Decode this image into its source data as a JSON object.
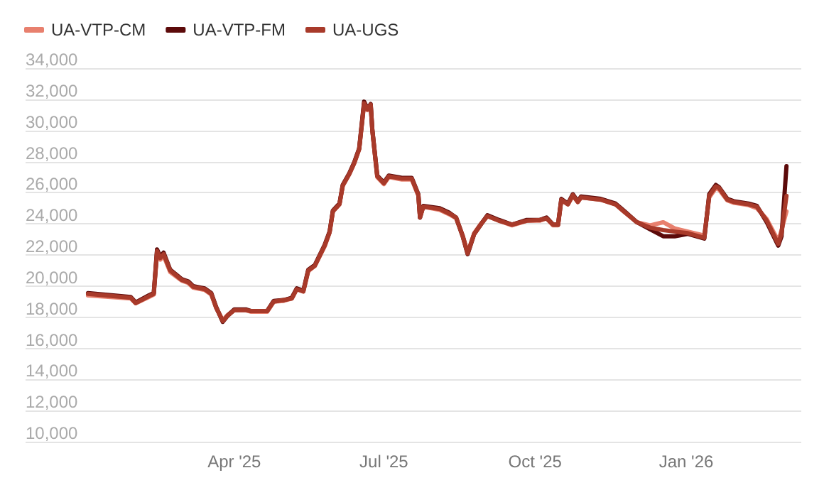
{
  "chart_data": {
    "type": "line",
    "x": [
      "2025-01-02",
      "2025-01-28",
      "2025-01-31",
      "2025-02-08",
      "2025-02-11",
      "2025-02-13",
      "2025-02-15",
      "2025-02-17",
      "2025-02-21",
      "2025-02-28",
      "2025-03-04",
      "2025-03-07",
      "2025-03-14",
      "2025-03-18",
      "2025-03-21",
      "2025-03-25",
      "2025-03-28",
      "2025-04-01",
      "2025-04-08",
      "2025-04-11",
      "2025-04-21",
      "2025-04-25",
      "2025-05-01",
      "2025-05-06",
      "2025-05-09",
      "2025-05-13",
      "2025-05-16",
      "2025-05-20",
      "2025-05-26",
      "2025-05-29",
      "2025-05-31",
      "2025-06-04",
      "2025-06-06",
      "2025-06-10",
      "2025-06-13",
      "2025-06-16",
      "2025-06-19",
      "2025-06-21",
      "2025-06-23",
      "2025-06-24",
      "2025-06-27",
      "2025-07-01",
      "2025-07-04",
      "2025-07-12",
      "2025-07-18",
      "2025-07-22",
      "2025-07-23",
      "2025-07-25",
      "2025-08-04",
      "2025-08-10",
      "2025-08-14",
      "2025-08-18",
      "2025-08-21",
      "2025-08-25",
      "2025-08-29",
      "2025-09-02",
      "2025-09-09",
      "2025-09-17",
      "2025-09-26",
      "2025-10-04",
      "2025-10-08",
      "2025-10-12",
      "2025-10-15",
      "2025-10-17",
      "2025-10-21",
      "2025-10-24",
      "2025-10-27",
      "2025-10-29",
      "2025-11-10",
      "2025-11-19",
      "2025-11-24",
      "2025-12-02",
      "2025-12-10",
      "2025-12-18",
      "2025-12-25",
      "2026-01-02",
      "2026-01-12",
      "2026-01-15",
      "2026-01-19",
      "2026-01-21",
      "2026-01-26",
      "2026-01-30",
      "2026-02-08",
      "2026-02-13",
      "2026-02-19",
      "2026-02-26",
      "2026-02-28",
      "2026-03-03"
    ],
    "series": [
      {
        "name": "UA-VTP-CM",
        "color": "#e8806e",
        "values": [
          19400,
          19200,
          18900,
          19300,
          19450,
          22100,
          21700,
          21950,
          20900,
          20350,
          20200,
          19900,
          19750,
          19450,
          18600,
          17800,
          18150,
          18450,
          18450,
          18350,
          18350,
          19000,
          19050,
          19200,
          19800,
          19650,
          20950,
          21300,
          22550,
          23450,
          24800,
          25250,
          26450,
          27200,
          27900,
          28800,
          31700,
          31300,
          31600,
          30000,
          27000,
          26550,
          27000,
          26850,
          26850,
          25800,
          24450,
          25100,
          24900,
          24600,
          24350,
          23250,
          22150,
          23400,
          24000,
          24500,
          24200,
          23900,
          24200,
          24200,
          24350,
          23900,
          23900,
          25500,
          25250,
          25800,
          25400,
          25700,
          25550,
          25250,
          24800,
          24100,
          23900,
          24100,
          23700,
          23500,
          23250,
          25700,
          26300,
          26200,
          25500,
          25350,
          25200,
          25000,
          24300,
          22900,
          23600,
          24800
        ]
      },
      {
        "name": "UA-VTP-FM",
        "color": "#5c0a0a",
        "values": [
          19550,
          19300,
          18950,
          19400,
          19550,
          22350,
          21900,
          22150,
          21050,
          20450,
          20300,
          20000,
          19850,
          19550,
          18650,
          17700,
          18100,
          18500,
          18500,
          18400,
          18400,
          19050,
          19100,
          19250,
          19850,
          19700,
          21050,
          21350,
          22650,
          23500,
          24850,
          25300,
          26500,
          27250,
          27950,
          28850,
          31850,
          31400,
          31700,
          30050,
          27100,
          26650,
          27100,
          26950,
          26950,
          25900,
          24400,
          25150,
          25000,
          24700,
          24400,
          23200,
          22050,
          23350,
          23950,
          24550,
          24250,
          23950,
          24250,
          24250,
          24400,
          23950,
          23950,
          25600,
          25300,
          25900,
          25450,
          25750,
          25600,
          25300,
          24850,
          24100,
          23650,
          23200,
          23200,
          23350,
          23050,
          25900,
          26500,
          26350,
          25600,
          25450,
          25300,
          25150,
          24100,
          22600,
          23200,
          27700
        ]
      },
      {
        "name": "UA-UGS",
        "color": "#a83a2a",
        "values": [
          19500,
          19250,
          18900,
          19350,
          19500,
          22250,
          21800,
          22050,
          21000,
          20400,
          20250,
          19950,
          19800,
          19500,
          18600,
          17750,
          18100,
          18450,
          18450,
          18400,
          18400,
          19000,
          19100,
          19200,
          19800,
          19650,
          21000,
          21300,
          22600,
          23450,
          24800,
          25250,
          26450,
          27200,
          27900,
          28800,
          31750,
          31350,
          31650,
          30000,
          27050,
          26600,
          27050,
          26900,
          26900,
          25850,
          24400,
          25100,
          24950,
          24650,
          24400,
          23200,
          22100,
          23350,
          23950,
          24500,
          24200,
          23950,
          24200,
          24250,
          24350,
          23950,
          23950,
          25550,
          25250,
          25850,
          25400,
          25700,
          25550,
          25250,
          24800,
          24100,
          23750,
          23600,
          23500,
          23400,
          23100,
          25800,
          26400,
          26300,
          25550,
          25400,
          25250,
          25100,
          24200,
          22700,
          23400,
          25800
        ]
      }
    ],
    "xlim": [
      "2024-11-25",
      "2026-03-12"
    ],
    "xticks": [
      {
        "value": "2025-04-01",
        "label": "Apr '25"
      },
      {
        "value": "2025-07-01",
        "label": "Jul '25"
      },
      {
        "value": "2025-10-01",
        "label": "Oct '25"
      },
      {
        "value": "2026-01-01",
        "label": "Jan '26"
      }
    ],
    "ylim": [
      10000,
      34000
    ],
    "yticks": [
      {
        "value": 10000,
        "label": "10,000"
      },
      {
        "value": 12000,
        "label": "12,000"
      },
      {
        "value": 14000,
        "label": "14,000"
      },
      {
        "value": 16000,
        "label": "16,000"
      },
      {
        "value": 18000,
        "label": "18,000"
      },
      {
        "value": 20000,
        "label": "20,000"
      },
      {
        "value": 22000,
        "label": "22,000"
      },
      {
        "value": 24000,
        "label": "24,000"
      },
      {
        "value": 26000,
        "label": "26,000"
      },
      {
        "value": 28000,
        "label": "28,000"
      },
      {
        "value": 30000,
        "label": "30,000"
      },
      {
        "value": 32000,
        "label": "32,000"
      },
      {
        "value": 34000,
        "label": "34,000"
      }
    ],
    "grid": "y",
    "legend": "top left",
    "marker": "none",
    "line_style": "solid"
  }
}
